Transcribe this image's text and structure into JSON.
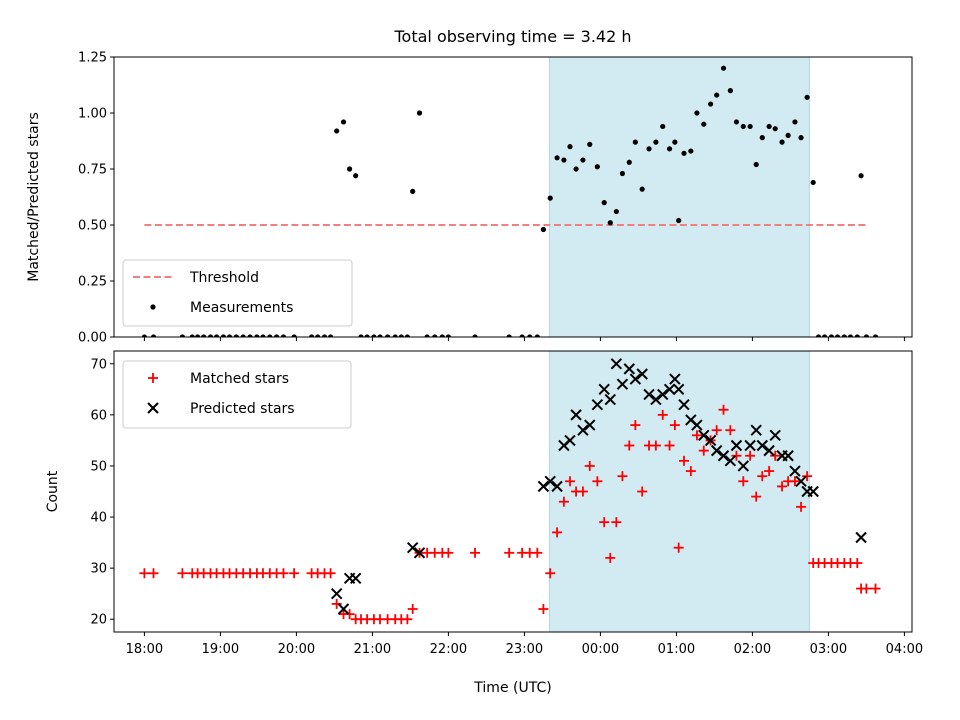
{
  "chart_data": [
    {
      "type": "scatter",
      "title": "Total observing time = 3.42 h",
      "ylabel": "Matched/Predicted stars",
      "ylim": [
        0,
        1.25
      ],
      "yticks": [
        "0.00",
        "0.25",
        "0.50",
        "0.75",
        "1.00",
        "1.25"
      ],
      "xlim_hours": [
        17.6,
        28.1
      ],
      "shaded_span_hours": [
        23.33,
        26.75
      ],
      "shade_color": "#add8e6",
      "threshold": {
        "name": "Threshold",
        "value": 0.5,
        "x_hours": [
          18.0,
          27.5
        ],
        "color": "#f08080",
        "style": "dashed"
      },
      "legend": {
        "placement": "lower-left",
        "entries": [
          "Threshold",
          "Measurements"
        ]
      },
      "series": [
        {
          "name": "Measurements",
          "marker": "dot",
          "color": "#000000",
          "points": [
            [
              18.0,
              0
            ],
            [
              18.12,
              0
            ],
            [
              18.5,
              0
            ],
            [
              18.63,
              0
            ],
            [
              18.7,
              0
            ],
            [
              18.78,
              0
            ],
            [
              18.87,
              0
            ],
            [
              18.95,
              0
            ],
            [
              19.04,
              0
            ],
            [
              19.12,
              0
            ],
            [
              19.21,
              0
            ],
            [
              19.3,
              0
            ],
            [
              19.39,
              0
            ],
            [
              19.48,
              0
            ],
            [
              19.56,
              0
            ],
            [
              19.65,
              0
            ],
            [
              19.74,
              0
            ],
            [
              19.83,
              0
            ],
            [
              19.97,
              0
            ],
            [
              20.2,
              0
            ],
            [
              20.28,
              0
            ],
            [
              20.37,
              0
            ],
            [
              20.45,
              0
            ],
            [
              20.53,
              0.92
            ],
            [
              20.62,
              0.96
            ],
            [
              20.7,
              0.75
            ],
            [
              20.78,
              0.72
            ],
            [
              20.85,
              0
            ],
            [
              20.93,
              0
            ],
            [
              21.02,
              0
            ],
            [
              21.1,
              0
            ],
            [
              21.2,
              0
            ],
            [
              21.3,
              0
            ],
            [
              21.38,
              0
            ],
            [
              21.46,
              0
            ],
            [
              21.53,
              0.65
            ],
            [
              21.62,
              1.0
            ],
            [
              21.72,
              0
            ],
            [
              21.82,
              0
            ],
            [
              21.92,
              0
            ],
            [
              22.0,
              0
            ],
            [
              22.35,
              0
            ],
            [
              22.8,
              0
            ],
            [
              22.97,
              0
            ],
            [
              23.07,
              0
            ],
            [
              23.17,
              0
            ],
            [
              23.25,
              0.48
            ],
            [
              23.34,
              0.62
            ],
            [
              23.43,
              0.8
            ],
            [
              23.52,
              0.79
            ],
            [
              23.6,
              0.85
            ],
            [
              23.68,
              0.75
            ],
            [
              23.77,
              0.79
            ],
            [
              23.86,
              0.86
            ],
            [
              23.96,
              0.76
            ],
            [
              24.05,
              0.6
            ],
            [
              24.13,
              0.51
            ],
            [
              24.21,
              0.56
            ],
            [
              24.29,
              0.73
            ],
            [
              24.38,
              0.78
            ],
            [
              24.46,
              0.87
            ],
            [
              24.55,
              0.66
            ],
            [
              24.64,
              0.84
            ],
            [
              24.73,
              0.87
            ],
            [
              24.82,
              0.94
            ],
            [
              24.91,
              0.84
            ],
            [
              24.98,
              0.87
            ],
            [
              25.03,
              0.52
            ],
            [
              25.1,
              0.82
            ],
            [
              25.19,
              0.83
            ],
            [
              25.27,
              1.0
            ],
            [
              25.36,
              0.95
            ],
            [
              25.45,
              1.04
            ],
            [
              25.53,
              1.08
            ],
            [
              25.62,
              1.2
            ],
            [
              25.71,
              1.1
            ],
            [
              25.79,
              0.96
            ],
            [
              25.88,
              0.94
            ],
            [
              25.97,
              0.94
            ],
            [
              26.05,
              0.77
            ],
            [
              26.13,
              0.89
            ],
            [
              26.22,
              0.94
            ],
            [
              26.3,
              0.93
            ],
            [
              26.39,
              0.87
            ],
            [
              26.47,
              0.9
            ],
            [
              26.56,
              0.96
            ],
            [
              26.64,
              0.89
            ],
            [
              26.72,
              1.07
            ],
            [
              26.8,
              0.69
            ],
            [
              26.87,
              0
            ],
            [
              26.95,
              0
            ],
            [
              27.04,
              0
            ],
            [
              27.12,
              0
            ],
            [
              27.21,
              0
            ],
            [
              27.29,
              0
            ],
            [
              27.38,
              0
            ],
            [
              27.5,
              0
            ],
            [
              27.62,
              0
            ],
            [
              27.43,
              0.72
            ]
          ]
        }
      ]
    },
    {
      "type": "scatter",
      "xlabel": "Time (UTC)",
      "ylabel": "Count",
      "ylim": [
        17.5,
        72.5
      ],
      "yticks": [
        "20",
        "30",
        "40",
        "50",
        "60",
        "70"
      ],
      "xlim_hours": [
        17.6,
        28.1
      ],
      "xticks": [
        {
          "h": 18,
          "label": "18:00"
        },
        {
          "h": 19,
          "label": "19:00"
        },
        {
          "h": 20,
          "label": "20:00"
        },
        {
          "h": 21,
          "label": "21:00"
        },
        {
          "h": 22,
          "label": "22:00"
        },
        {
          "h": 23,
          "label": "23:00"
        },
        {
          "h": 24,
          "label": "00:00"
        },
        {
          "h": 25,
          "label": "01:00"
        },
        {
          "h": 26,
          "label": "02:00"
        },
        {
          "h": 27,
          "label": "03:00"
        },
        {
          "h": 28,
          "label": "04:00"
        }
      ],
      "shaded_span_hours": [
        23.33,
        26.75
      ],
      "shade_color": "#add8e6",
      "legend": {
        "placement": "upper-left",
        "entries": [
          "Matched stars",
          "Predicted stars"
        ]
      },
      "series": [
        {
          "name": "Matched stars",
          "marker": "plus",
          "color": "#ff0000",
          "points": [
            [
              18.0,
              29
            ],
            [
              18.12,
              29
            ],
            [
              18.5,
              29
            ],
            [
              18.63,
              29
            ],
            [
              18.7,
              29
            ],
            [
              18.78,
              29
            ],
            [
              18.87,
              29
            ],
            [
              18.95,
              29
            ],
            [
              19.04,
              29
            ],
            [
              19.12,
              29
            ],
            [
              19.21,
              29
            ],
            [
              19.3,
              29
            ],
            [
              19.39,
              29
            ],
            [
              19.48,
              29
            ],
            [
              19.56,
              29
            ],
            [
              19.65,
              29
            ],
            [
              19.74,
              29
            ],
            [
              19.83,
              29
            ],
            [
              19.97,
              29
            ],
            [
              20.2,
              29
            ],
            [
              20.28,
              29
            ],
            [
              20.37,
              29
            ],
            [
              20.45,
              29
            ],
            [
              20.53,
              23
            ],
            [
              20.62,
              21
            ],
            [
              20.7,
              21
            ],
            [
              20.78,
              20
            ],
            [
              20.85,
              20
            ],
            [
              20.93,
              20
            ],
            [
              21.02,
              20
            ],
            [
              21.1,
              20
            ],
            [
              21.2,
              20
            ],
            [
              21.3,
              20
            ],
            [
              21.38,
              20
            ],
            [
              21.46,
              20
            ],
            [
              21.53,
              22
            ],
            [
              21.62,
              33
            ],
            [
              21.72,
              33
            ],
            [
              21.82,
              33
            ],
            [
              21.92,
              33
            ],
            [
              22.0,
              33
            ],
            [
              22.35,
              33
            ],
            [
              22.8,
              33
            ],
            [
              22.97,
              33
            ],
            [
              23.07,
              33
            ],
            [
              23.17,
              33
            ],
            [
              23.25,
              22
            ],
            [
              23.34,
              29
            ],
            [
              23.43,
              37
            ],
            [
              23.52,
              43
            ],
            [
              23.6,
              47
            ],
            [
              23.68,
              45
            ],
            [
              23.77,
              45
            ],
            [
              23.86,
              50
            ],
            [
              23.96,
              47
            ],
            [
              24.05,
              39
            ],
            [
              24.13,
              32
            ],
            [
              24.21,
              39
            ],
            [
              24.29,
              48
            ],
            [
              24.38,
              54
            ],
            [
              24.46,
              58
            ],
            [
              24.55,
              45
            ],
            [
              24.64,
              54
            ],
            [
              24.73,
              54
            ],
            [
              24.82,
              60
            ],
            [
              24.91,
              54
            ],
            [
              24.98,
              58
            ],
            [
              25.03,
              34
            ],
            [
              25.1,
              51
            ],
            [
              25.19,
              49
            ],
            [
              25.27,
              56
            ],
            [
              25.36,
              53
            ],
            [
              25.45,
              55
            ],
            [
              25.53,
              57
            ],
            [
              25.62,
              61
            ],
            [
              25.71,
              57
            ],
            [
              25.79,
              52
            ],
            [
              25.88,
              47
            ],
            [
              25.97,
              52
            ],
            [
              26.05,
              44
            ],
            [
              26.13,
              48
            ],
            [
              26.22,
              49
            ],
            [
              26.3,
              52
            ],
            [
              26.39,
              46
            ],
            [
              26.47,
              47
            ],
            [
              26.56,
              47
            ],
            [
              26.64,
              42
            ],
            [
              26.72,
              48
            ],
            [
              26.8,
              31
            ],
            [
              26.87,
              31
            ],
            [
              26.95,
              31
            ],
            [
              27.04,
              31
            ],
            [
              27.12,
              31
            ],
            [
              27.21,
              31
            ],
            [
              27.29,
              31
            ],
            [
              27.38,
              31
            ],
            [
              27.43,
              26
            ],
            [
              27.5,
              26
            ],
            [
              27.62,
              26
            ]
          ]
        },
        {
          "name": "Predicted stars",
          "marker": "x",
          "color": "#000000",
          "points": [
            [
              20.53,
              25
            ],
            [
              20.62,
              22
            ],
            [
              20.7,
              28
            ],
            [
              20.78,
              28
            ],
            [
              21.53,
              34
            ],
            [
              21.62,
              33
            ],
            [
              23.25,
              46
            ],
            [
              23.34,
              47
            ],
            [
              23.43,
              46
            ],
            [
              23.52,
              54
            ],
            [
              23.6,
              55
            ],
            [
              23.68,
              60
            ],
            [
              23.77,
              57
            ],
            [
              23.86,
              58
            ],
            [
              23.96,
              62
            ],
            [
              24.05,
              65
            ],
            [
              24.13,
              63
            ],
            [
              24.21,
              70
            ],
            [
              24.29,
              66
            ],
            [
              24.38,
              69
            ],
            [
              24.46,
              67
            ],
            [
              24.55,
              68
            ],
            [
              24.64,
              64
            ],
            [
              24.73,
              63
            ],
            [
              24.82,
              64
            ],
            [
              24.91,
              65
            ],
            [
              24.98,
              67
            ],
            [
              25.03,
              65
            ],
            [
              25.1,
              62
            ],
            [
              25.19,
              59
            ],
            [
              25.27,
              58
            ],
            [
              25.36,
              56
            ],
            [
              25.45,
              55
            ],
            [
              25.53,
              53
            ],
            [
              25.62,
              52
            ],
            [
              25.71,
              51
            ],
            [
              25.79,
              54
            ],
            [
              25.88,
              50
            ],
            [
              25.97,
              54
            ],
            [
              26.05,
              57
            ],
            [
              26.13,
              54
            ],
            [
              26.22,
              53
            ],
            [
              26.3,
              56
            ],
            [
              26.39,
              52
            ],
            [
              26.47,
              52
            ],
            [
              26.56,
              49
            ],
            [
              26.64,
              47
            ],
            [
              26.72,
              45
            ],
            [
              26.8,
              45
            ],
            [
              27.43,
              36
            ]
          ]
        }
      ]
    }
  ]
}
